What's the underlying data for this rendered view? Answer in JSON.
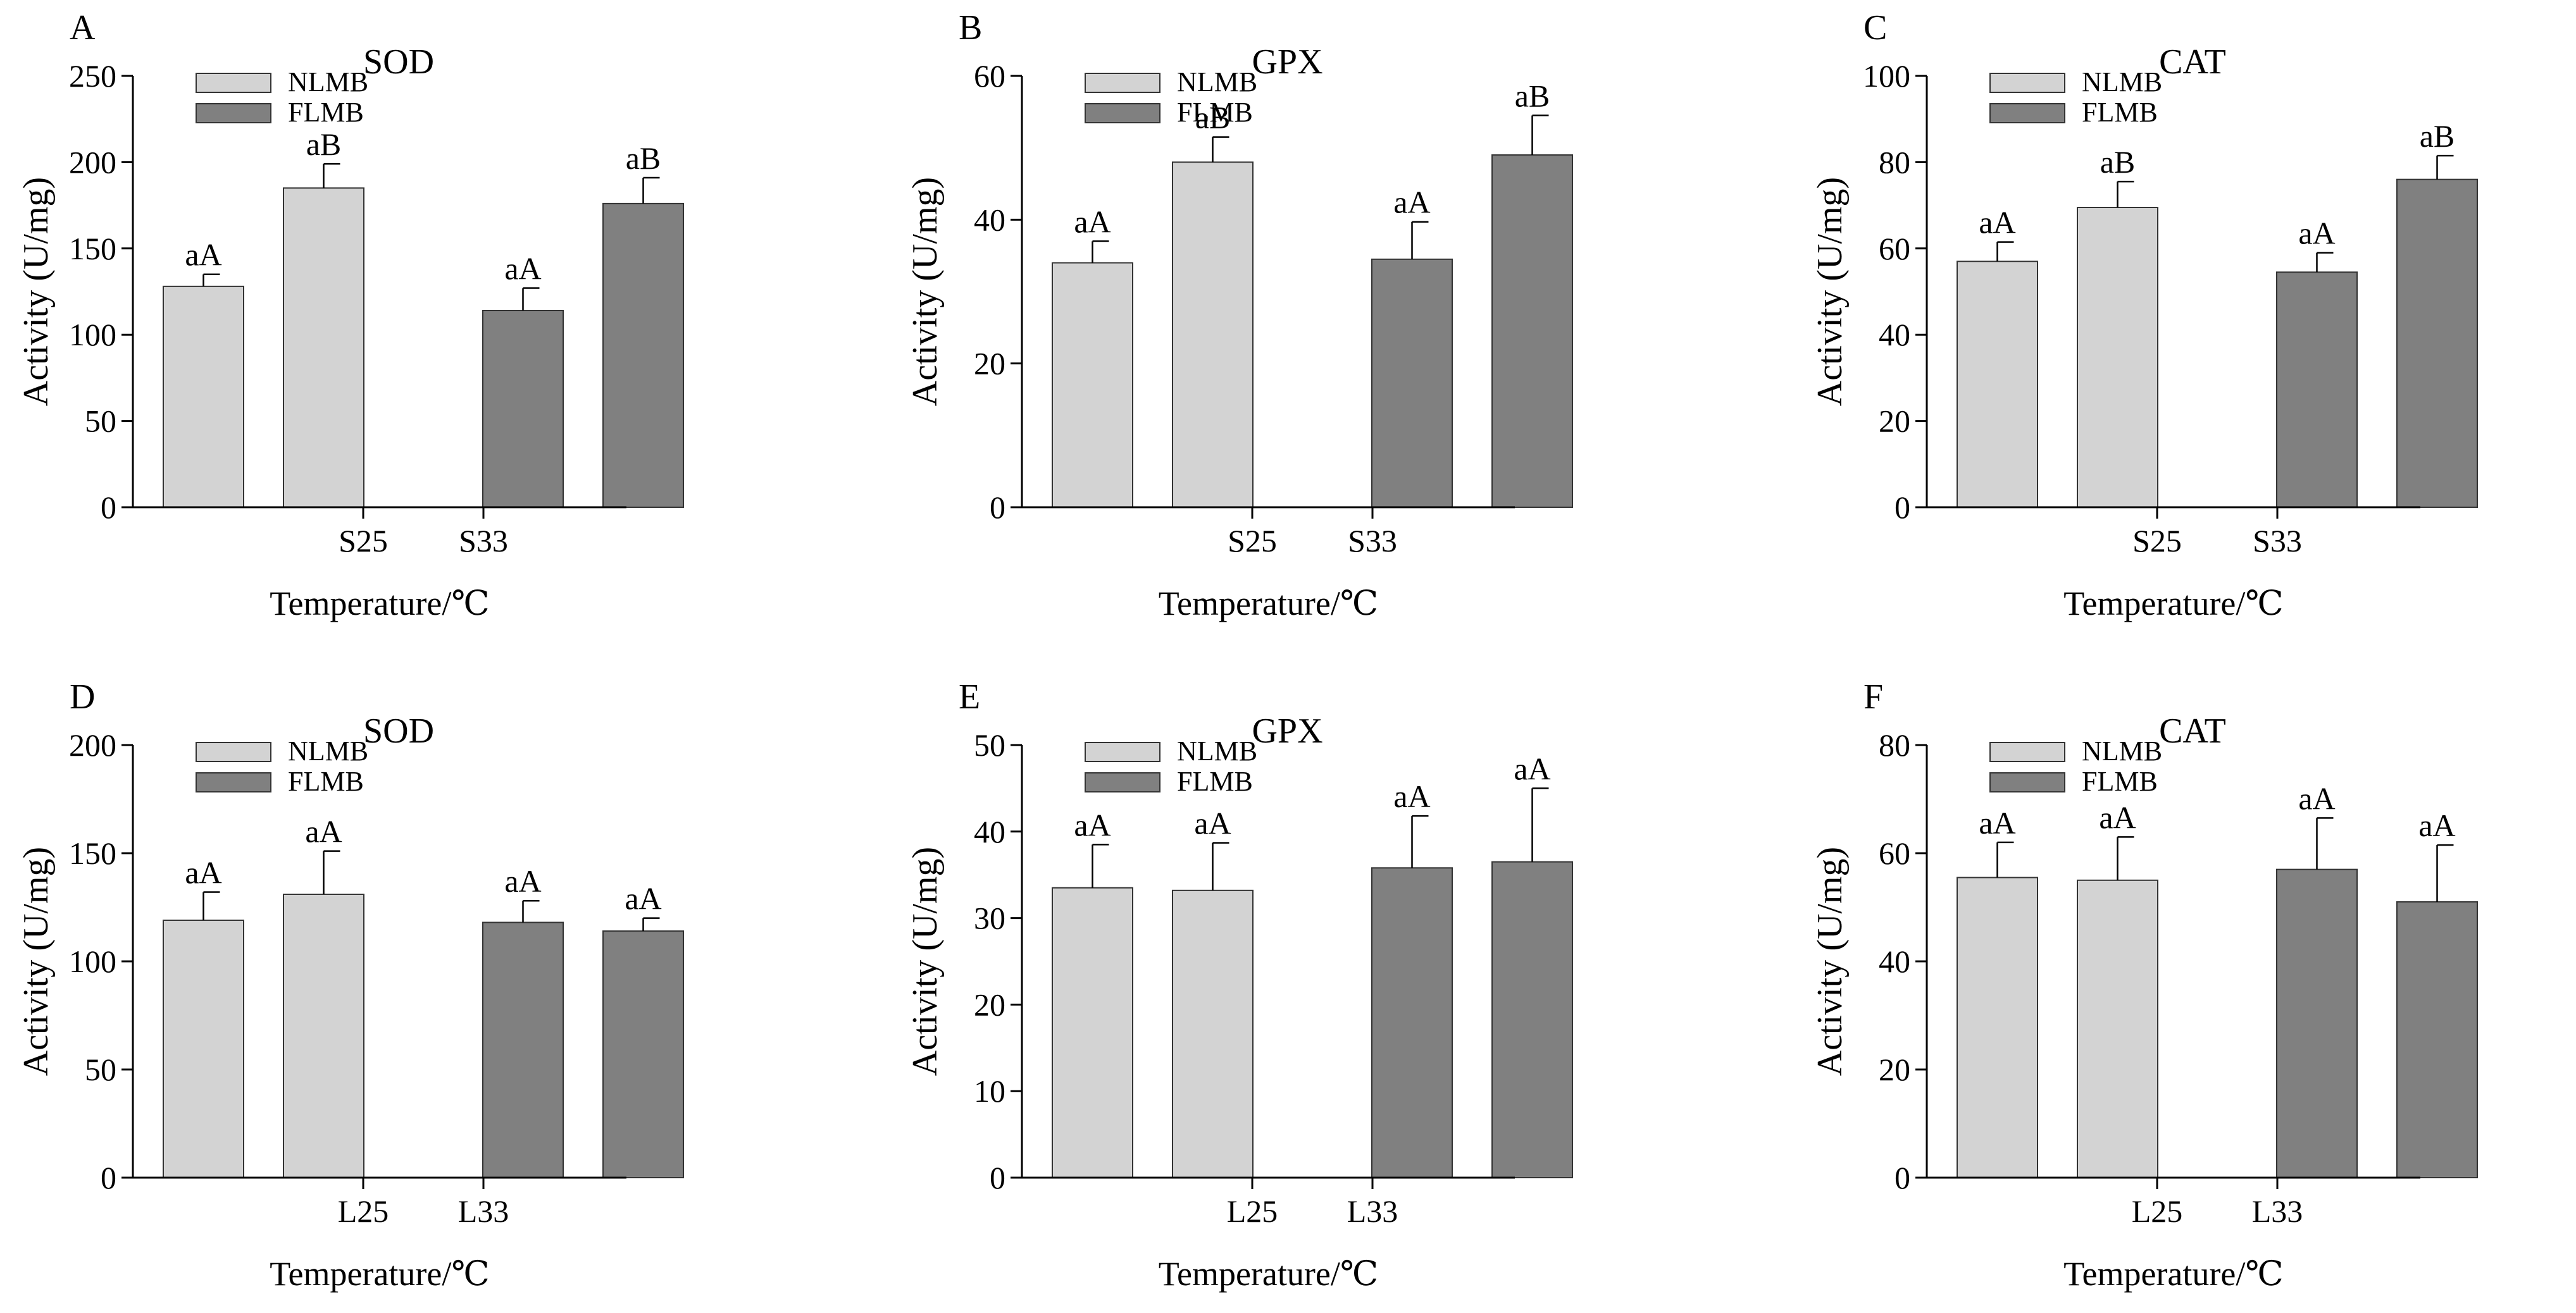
{
  "colors": {
    "nlmb": "#d3d3d3",
    "flmb": "#808080",
    "axis": "#000000",
    "background": "#ffffff"
  },
  "chart_data": [
    {
      "type": "bar",
      "panel": "A",
      "title": "SOD",
      "xlabel": "Temperature/℃",
      "ylabel": "Activity (U/mg)",
      "categories": [
        "S25",
        "S33"
      ],
      "ylim": [
        0,
        250
      ],
      "yticks": [
        0,
        50,
        100,
        150,
        200,
        250
      ],
      "legend": "top-left",
      "series": [
        {
          "name": "NLMB",
          "values": [
            128,
            185
          ],
          "errors": [
            7,
            14
          ],
          "labels": [
            "aA",
            "aB"
          ]
        },
        {
          "name": "FLMB",
          "values": [
            114,
            176
          ],
          "errors": [
            13,
            15
          ],
          "labels": [
            "aA",
            "aB"
          ]
        }
      ]
    },
    {
      "type": "bar",
      "panel": "B",
      "title": "GPX",
      "xlabel": "Temperature/℃",
      "ylabel": "Activity (U/mg)",
      "categories": [
        "S25",
        "S33"
      ],
      "ylim": [
        0,
        60
      ],
      "yticks": [
        0,
        20,
        40,
        60
      ],
      "legend": "top-left",
      "series": [
        {
          "name": "NLMB",
          "values": [
            34,
            48
          ],
          "errors": [
            3,
            3.5
          ],
          "labels": [
            "aA",
            "aB"
          ]
        },
        {
          "name": "FLMB",
          "values": [
            34.5,
            49
          ],
          "errors": [
            5.2,
            5.5
          ],
          "labels": [
            "aA",
            "aB"
          ]
        }
      ]
    },
    {
      "type": "bar",
      "panel": "C",
      "title": "CAT",
      "xlabel": "Temperature/℃",
      "ylabel": "Activity (U/mg)",
      "categories": [
        "S25",
        "S33"
      ],
      "ylim": [
        0,
        100
      ],
      "yticks": [
        0,
        20,
        40,
        60,
        80,
        100
      ],
      "legend": "top-left",
      "series": [
        {
          "name": "NLMB",
          "values": [
            57,
            69.5
          ],
          "errors": [
            4.5,
            6
          ],
          "labels": [
            "aA",
            "aB"
          ]
        },
        {
          "name": "FLMB",
          "values": [
            54.5,
            76
          ],
          "errors": [
            4.5,
            5.5
          ],
          "labels": [
            "aA",
            "aB"
          ]
        }
      ]
    },
    {
      "type": "bar",
      "panel": "D",
      "title": "SOD",
      "xlabel": "Temperature/℃",
      "ylabel": "Activity (U/mg)",
      "categories": [
        "L25",
        "L33"
      ],
      "ylim": [
        0,
        200
      ],
      "yticks": [
        0,
        50,
        100,
        150,
        200
      ],
      "legend": "top-left",
      "series": [
        {
          "name": "NLMB",
          "values": [
            119,
            131
          ],
          "errors": [
            13,
            20
          ],
          "labels": [
            "aA",
            "aA"
          ]
        },
        {
          "name": "FLMB",
          "values": [
            118,
            114
          ],
          "errors": [
            10,
            6
          ],
          "labels": [
            "aA",
            "aA"
          ]
        }
      ]
    },
    {
      "type": "bar",
      "panel": "E",
      "title": "GPX",
      "xlabel": "Temperature/℃",
      "ylabel": "Activity (U/mg)",
      "categories": [
        "L25",
        "L33"
      ],
      "ylim": [
        0,
        50
      ],
      "yticks": [
        0,
        10,
        20,
        30,
        40,
        50
      ],
      "legend": "top-left",
      "series": [
        {
          "name": "NLMB",
          "values": [
            33.5,
            33.2
          ],
          "errors": [
            5,
            5.5
          ],
          "labels": [
            "aA",
            "aA"
          ]
        },
        {
          "name": "FLMB",
          "values": [
            35.8,
            36.5
          ],
          "errors": [
            6,
            8.5
          ],
          "labels": [
            "aA",
            "aA"
          ]
        }
      ]
    },
    {
      "type": "bar",
      "panel": "F",
      "title": "CAT",
      "xlabel": "Temperature/℃",
      "ylabel": "Activity (U/mg)",
      "categories": [
        "L25",
        "L33"
      ],
      "ylim": [
        0,
        80
      ],
      "yticks": [
        0,
        20,
        40,
        60,
        80
      ],
      "legend": "top-left",
      "series": [
        {
          "name": "NLMB",
          "values": [
            55.5,
            55
          ],
          "errors": [
            6.5,
            8
          ],
          "labels": [
            "aA",
            "aA"
          ]
        },
        {
          "name": "FLMB",
          "values": [
            57,
            51
          ],
          "errors": [
            9.5,
            10.5
          ],
          "labels": [
            "aA",
            "aA"
          ]
        }
      ]
    }
  ]
}
